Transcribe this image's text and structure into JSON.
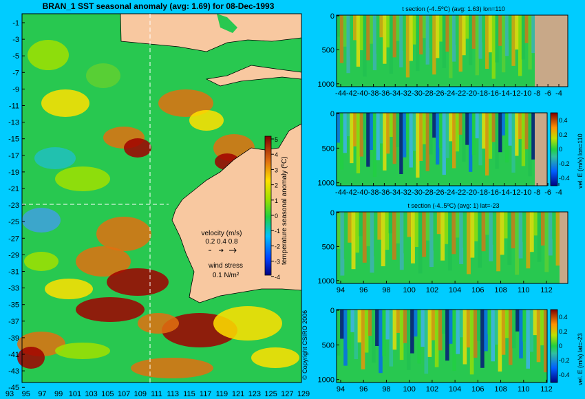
{
  "map": {
    "title": "BRAN_1  SST seasonal anomaly (avg: 1.69) for 08-Dec-1993",
    "lat_labels": [
      "-1",
      "-3",
      "-5",
      "-7",
      "-9",
      "-11",
      "-13",
      "-15",
      "-17",
      "-19",
      "-21",
      "-23",
      "-25",
      "-27",
      "-29",
      "-31",
      "-33",
      "-35",
      "-37",
      "-39",
      "-41",
      "-43",
      "-45"
    ],
    "lon_labels": [
      "93",
      "95",
      "97",
      "99",
      "101",
      "103",
      "105",
      "107",
      "109",
      "111",
      "113",
      "115",
      "117",
      "119",
      "121",
      "123",
      "125",
      "127",
      "129"
    ],
    "colorbar_ticks": [
      "5",
      "4",
      "3",
      "2",
      "1",
      "0",
      "-1",
      "-2",
      "-3",
      "-4"
    ],
    "colorbar_label": "temperature seasonal anomaly (ºC)",
    "velocity_title": "velocity (m/s)",
    "velocity_scale": "0.2 0.4 0.8",
    "wind_title": "wind stress",
    "wind_scale": "0.1 N/m²",
    "copyright": "© Copyright CSIRO 2006"
  },
  "panels": [
    {
      "title": "t section (-4..5ºC) (avg: 1.63) lon=110",
      "yticks": [
        "0",
        "500",
        "1000"
      ],
      "xticks": [
        "-44",
        "-42",
        "-40",
        "-38",
        "-36",
        "-34",
        "-32",
        "-30",
        "-28",
        "-26",
        "-24",
        "-22",
        "-20",
        "-18",
        "-16",
        "-14",
        "-12",
        "-10",
        "-8",
        "-6",
        "-4"
      ]
    },
    {
      "title": "",
      "yticks": [
        "0",
        "500",
        "1000"
      ],
      "xticks": [
        "-44",
        "-42",
        "-40",
        "-38",
        "-36",
        "-34",
        "-32",
        "-30",
        "-28",
        "-26",
        "-24",
        "-22",
        "-20",
        "-18",
        "-16",
        "-14",
        "-12",
        "-10",
        "-8",
        "-6",
        "-4"
      ],
      "cbar_ticks": [
        "0.4",
        "0.2",
        "0",
        "-0.2",
        "-0.4"
      ],
      "cbar_label": "vel. E (m/s) lon=110"
    },
    {
      "title": "t section (-4..5ºC) (avg: 1) lat=-23",
      "yticks": [
        "0",
        "500",
        "1000"
      ],
      "xticks": [
        "94",
        "96",
        "98",
        "100",
        "102",
        "104",
        "106",
        "108",
        "110",
        "112"
      ]
    },
    {
      "title": "",
      "yticks": [
        "0",
        "500",
        "1000"
      ],
      "xticks": [
        "94",
        "96",
        "98",
        "100",
        "102",
        "104",
        "106",
        "108",
        "110",
        "112"
      ],
      "cbar_ticks": [
        "0.4",
        "0.2",
        "0",
        "-0.2",
        "-0.4"
      ],
      "cbar_label": "vel. E (m/s) lat=-23"
    }
  ],
  "colors": {
    "background": "#00ccff",
    "land": "#f8c8a0",
    "section_land": "#c8a888"
  },
  "chart_data": [
    {
      "type": "heatmap",
      "title": "BRAN_1  SST seasonal anomaly (avg: 1.69) for 08-Dec-1993",
      "x_range": [
        93,
        130
      ],
      "y_range": [
        -45,
        0
      ],
      "color_range": [
        -4,
        5
      ],
      "colorbar_label": "temperature seasonal anomaly (ºC)"
    },
    {
      "type": "heatmap",
      "title": "t section (-4..5ºC) (avg: 1.63) lon=110",
      "x_range": [
        -45,
        -3
      ],
      "y_range": [
        1050,
        0
      ]
    },
    {
      "type": "heatmap",
      "title": "",
      "x_range": [
        -45,
        -3
      ],
      "y_range": [
        1050,
        0
      ],
      "color_range": [
        -0.45,
        0.45
      ],
      "colorbar_label": "vel. E (m/s) lon=110"
    },
    {
      "type": "heatmap",
      "title": "t section (-4..5ºC) (avg: 1) lat=-23",
      "x_range": [
        93,
        114
      ],
      "y_range": [
        1050,
        0
      ]
    },
    {
      "type": "heatmap",
      "title": "",
      "x_range": [
        93,
        114
      ],
      "y_range": [
        1050,
        0
      ],
      "color_range": [
        -0.45,
        0.45
      ],
      "colorbar_label": "vel. E (m/s) lat=-23"
    }
  ]
}
